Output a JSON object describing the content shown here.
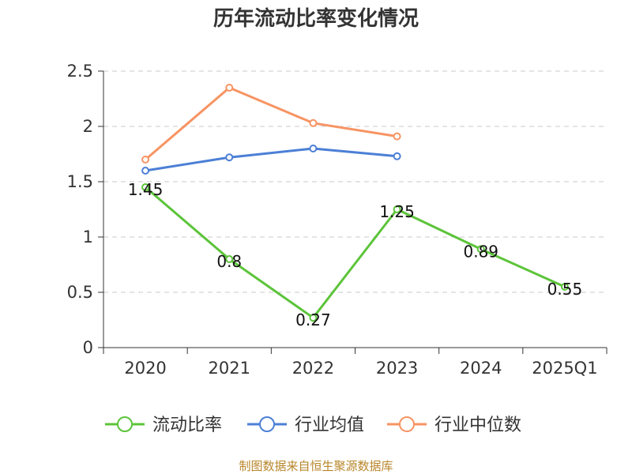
{
  "chart_data": {
    "type": "line",
    "title": "历年流动比率变化情况",
    "categories": [
      "2020",
      "2021",
      "2022",
      "2023",
      "2024",
      "2025Q1"
    ],
    "ylim": [
      0,
      2.5
    ],
    "yticks": [
      0,
      0.5,
      1,
      1.5,
      2,
      2.5
    ],
    "ytick_labels": [
      "0",
      "0.5",
      "1",
      "1.5",
      "2",
      "2.5"
    ],
    "grid": true,
    "legend_position": "bottom",
    "series": [
      {
        "name": "流动比率",
        "color": "#5cc43a",
        "values": [
          1.45,
          0.8,
          0.27,
          1.25,
          0.89,
          0.55
        ],
        "labels": [
          "1.45",
          "0.8",
          "0.27",
          "1.25",
          "0.89",
          "0.55"
        ],
        "show_labels": true
      },
      {
        "name": "行业均值",
        "color": "#4c7fd6",
        "values": [
          1.6,
          1.72,
          1.8,
          1.73,
          null,
          null
        ],
        "show_labels": false
      },
      {
        "name": "行业中位数",
        "color": "#f79463",
        "values": [
          1.7,
          2.35,
          2.03,
          1.91,
          null,
          null
        ],
        "show_labels": false
      }
    ],
    "source": "制图数据来自恒生聚源数据库"
  }
}
